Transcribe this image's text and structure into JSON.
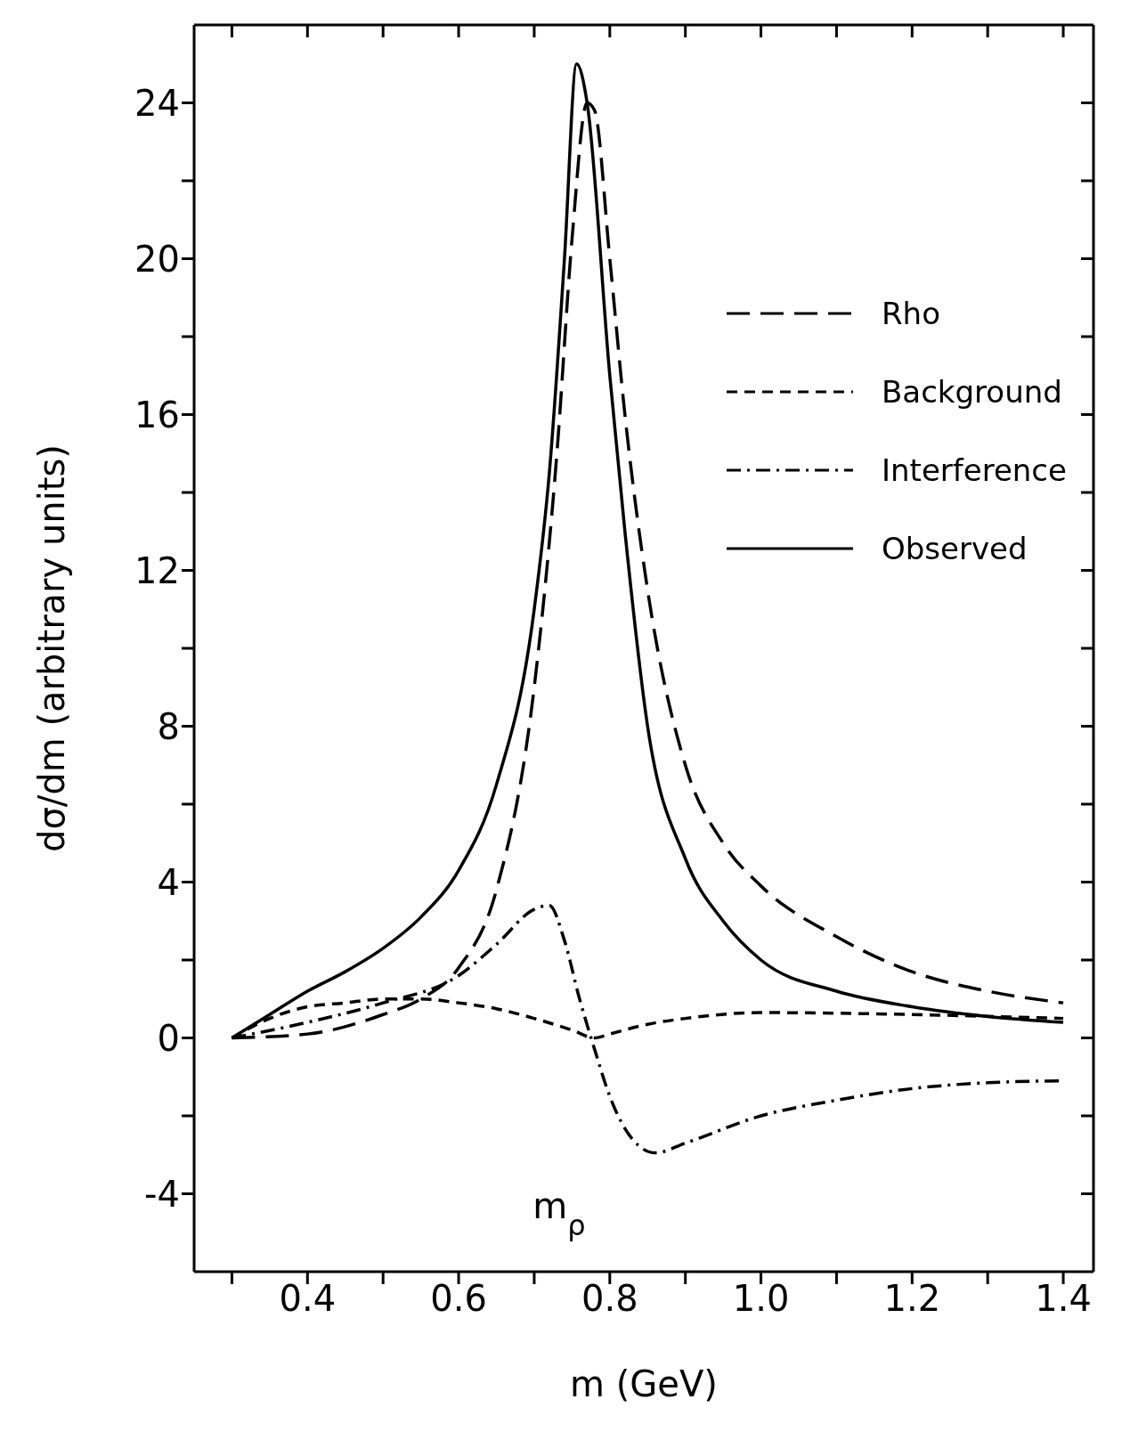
{
  "chart_data": {
    "type": "line",
    "xlabel": "m (GeV)",
    "ylabel": "dσ/dm   (arbitrary units)",
    "xlim": [
      0.25,
      1.44
    ],
    "ylim": [
      -6,
      26
    ],
    "xticks": [
      {
        "value": 0.3,
        "label": null
      },
      0.4,
      {
        "value": 0.5,
        "label": null
      },
      0.6,
      {
        "value": 0.7,
        "label": null
      },
      0.8,
      {
        "value": 0.9,
        "label": null
      },
      {
        "value": 1.0,
        "label": "1.0"
      },
      {
        "value": 1.1,
        "label": null
      },
      1.2,
      {
        "value": 1.3,
        "label": null
      },
      1.4
    ],
    "yticks": [
      -4,
      {
        "value": -2,
        "label": null
      },
      0,
      {
        "value": 2,
        "label": null
      },
      4,
      {
        "value": 6,
        "label": null
      },
      8,
      {
        "value": 10,
        "label": null
      },
      12,
      {
        "value": 14,
        "label": null
      },
      16,
      {
        "value": 18,
        "label": null
      },
      20,
      {
        "value": 22,
        "label": null
      },
      24
    ],
    "legend": "top right",
    "marker": "none",
    "annotations": [
      "m$_{ρ}$"
    ],
    "series": [
      {
        "name": "Rho",
        "color": "#000000",
        "line_style": "dashed",
        "x": [
          0.3,
          0.4,
          0.5,
          0.55,
          0.6,
          0.65,
          0.7,
          0.73,
          0.75,
          0.77,
          0.78,
          0.8,
          0.82,
          0.85,
          0.9,
          0.95,
          1.0,
          1.1,
          1.2,
          1.3,
          1.4
        ],
        "values": [
          0,
          0.1,
          0.6,
          1.0,
          1.8,
          3.8,
          9,
          15,
          20.5,
          24,
          23.8,
          20,
          16,
          11.5,
          7,
          5,
          3.9,
          2.6,
          1.7,
          1.2,
          0.9
        ]
      },
      {
        "name": "Background",
        "color": "#000000",
        "line_style": "dashed",
        "x": [
          0.3,
          0.35,
          0.4,
          0.45,
          0.5,
          0.55,
          0.6,
          0.65,
          0.7,
          0.75,
          0.78,
          0.8,
          0.85,
          0.9,
          1.0,
          1.2,
          1.4
        ],
        "values": [
          0,
          0.5,
          0.8,
          0.9,
          1.0,
          1.0,
          0.9,
          0.75,
          0.5,
          0.2,
          0,
          0.1,
          0.35,
          0.5,
          0.65,
          0.6,
          0.5
        ]
      },
      {
        "name": "Interference",
        "color": "#000000",
        "line_style": "dashdot",
        "x": [
          0.3,
          0.4,
          0.5,
          0.6,
          0.65,
          0.7,
          0.72,
          0.74,
          0.76,
          0.78,
          0.8,
          0.83,
          0.86,
          0.9,
          1.0,
          1.1,
          1.2,
          1.3,
          1.4
        ],
        "values": [
          0,
          0.4,
          0.9,
          1.6,
          2.4,
          3.3,
          3.4,
          2.5,
          1.0,
          -0.3,
          -1.5,
          -2.6,
          -2.95,
          -2.7,
          -2.0,
          -1.6,
          -1.3,
          -1.15,
          -1.1
        ]
      },
      {
        "name": "Observed",
        "color": "#000000",
        "line_style": "solid",
        "x": [
          0.3,
          0.35,
          0.4,
          0.45,
          0.5,
          0.55,
          0.6,
          0.65,
          0.7,
          0.72,
          0.74,
          0.756,
          0.77,
          0.8,
          0.82,
          0.85,
          0.9,
          0.95,
          1.0,
          1.1,
          1.2,
          1.3,
          1.4
        ],
        "values": [
          0,
          0.6,
          1.2,
          1.7,
          2.3,
          3.1,
          4.3,
          6.5,
          11,
          14.5,
          20,
          25,
          24,
          17,
          13,
          8,
          4.6,
          3.0,
          2.0,
          1.2,
          0.8,
          0.55,
          0.4
        ]
      }
    ]
  }
}
